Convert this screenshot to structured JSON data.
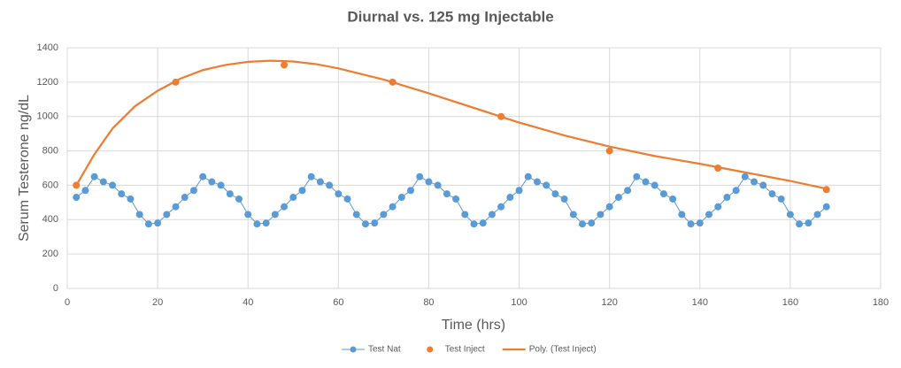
{
  "chart_data": {
    "type": "scatter",
    "title": "Diurnal vs. 125 mg Injectable",
    "x_label": "Time (hrs)",
    "y_label": "Serum Testerone ng/dL",
    "xlim": [
      0,
      180
    ],
    "xticks": [
      0,
      20,
      40,
      60,
      80,
      100,
      120,
      140,
      160,
      180
    ],
    "ylim": [
      0,
      1400
    ],
    "yticks": [
      0,
      200,
      400,
      600,
      800,
      1000,
      1200,
      1400
    ],
    "grid": true,
    "legend": "bottom",
    "series": [
      {
        "name": "Test Nat",
        "color": "#5b9bd5",
        "line": true,
        "marker": true,
        "x": [
          2,
          4,
          6,
          8,
          10,
          12,
          14,
          16,
          18,
          20,
          22,
          24,
          26,
          28,
          30,
          32,
          34,
          36,
          38,
          40,
          42,
          44,
          46,
          48,
          50,
          52,
          54,
          56,
          58,
          60,
          62,
          64,
          66,
          68,
          70,
          72,
          74,
          76,
          78,
          80,
          82,
          84,
          86,
          88,
          90,
          92,
          94,
          96,
          98,
          100,
          102,
          104,
          106,
          108,
          110,
          112,
          114,
          116,
          118,
          120,
          122,
          124,
          126,
          128,
          130,
          132,
          134,
          136,
          138,
          140,
          142,
          144,
          146,
          148,
          150,
          152,
          154,
          156,
          158,
          160,
          162,
          164,
          166,
          168
        ],
        "values": [
          530,
          570,
          650,
          620,
          600,
          550,
          520,
          430,
          375,
          380,
          430,
          475,
          530,
          570,
          650,
          620,
          600,
          550,
          520,
          430,
          375,
          380,
          430,
          475,
          530,
          570,
          650,
          620,
          600,
          550,
          520,
          430,
          375,
          380,
          430,
          475,
          530,
          570,
          650,
          620,
          600,
          550,
          520,
          430,
          375,
          380,
          430,
          475,
          530,
          570,
          650,
          620,
          600,
          550,
          520,
          430,
          375,
          380,
          430,
          475,
          530,
          570,
          650,
          620,
          600,
          550,
          520,
          430,
          375,
          380,
          430,
          475,
          530,
          570,
          650,
          620,
          600,
          550,
          520,
          430,
          375,
          380,
          430,
          475
        ]
      },
      {
        "name": "Test Inject",
        "color": "#ed7d31",
        "line": false,
        "marker": true,
        "x": [
          2,
          24,
          48,
          72,
          96,
          120,
          144,
          168
        ],
        "values": [
          600,
          1200,
          1300,
          1200,
          1000,
          800,
          700,
          575
        ]
      },
      {
        "name": "Poly. (Test Inject)",
        "color": "#ed7d31",
        "line": true,
        "marker": false,
        "x": [
          2,
          6,
          10,
          15,
          20,
          25,
          30,
          35,
          40,
          45,
          50,
          55,
          60,
          70,
          80,
          90,
          100,
          110,
          120,
          130,
          140,
          150,
          160,
          168
        ],
        "values": [
          600,
          780,
          930,
          1060,
          1150,
          1220,
          1270,
          1300,
          1318,
          1325,
          1320,
          1305,
          1280,
          1215,
          1135,
          1050,
          965,
          890,
          825,
          770,
          725,
          675,
          625,
          580
        ]
      }
    ]
  }
}
